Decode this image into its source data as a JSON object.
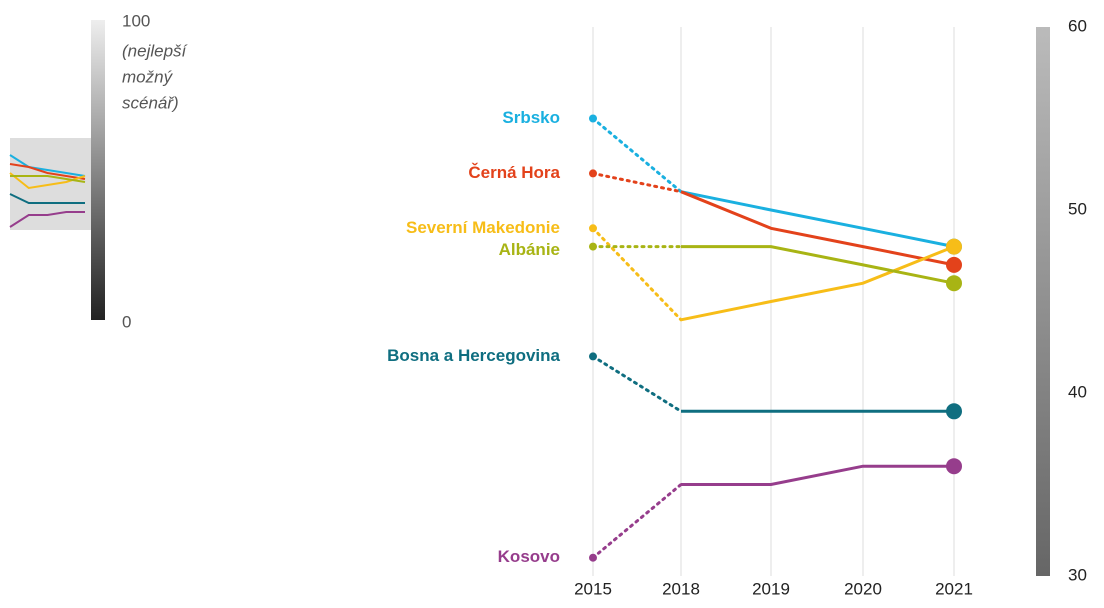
{
  "chart_data": {
    "type": "line",
    "categories": [
      "2015",
      "2018",
      "2019",
      "2020",
      "2021"
    ],
    "series": [
      {
        "name": "Srbsko",
        "color": "#1ab0e0",
        "values": [
          55,
          51,
          50,
          49,
          48
        ]
      },
      {
        "name": "Černá Hora",
        "color": "#e3421b",
        "values": [
          52,
          51,
          49,
          48,
          47
        ]
      },
      {
        "name": "Severní Makedonie",
        "color": "#f7bd18",
        "values": [
          49,
          44,
          45,
          46,
          48
        ]
      },
      {
        "name": "Albánie",
        "color": "#a8b414",
        "values": [
          48,
          48,
          48,
          47,
          46
        ]
      },
      {
        "name": "Bosna a Hercegovina",
        "color": "#0f6e80",
        "values": [
          42,
          39,
          39,
          39,
          39
        ]
      },
      {
        "name": "Kosovo",
        "color": "#963d8c",
        "values": [
          31,
          35,
          35,
          36,
          36
        ]
      }
    ],
    "ylim": [
      30,
      60
    ],
    "yticks": [
      30,
      40,
      50,
      60
    ],
    "dotted_first_segment": true,
    "end_markers": true,
    "grid": true,
    "gauge": {
      "ylim": [
        0,
        100
      ],
      "top_label": "100",
      "bottom_label": "0",
      "note_lines": [
        "(nejlepší",
        "možný",
        "scénář)"
      ]
    }
  }
}
